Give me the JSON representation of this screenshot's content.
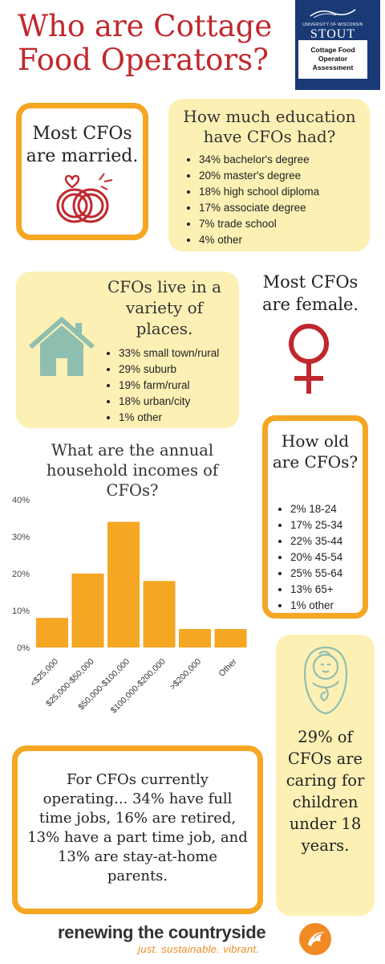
{
  "title": "Who are Cottage Food Operators?",
  "logo": {
    "university": "UNIVERSITY OF WISCONSIN",
    "name": "STOUT",
    "subtitle": "Cottage Food Operator Assessment"
  },
  "married": {
    "text": "Most CFOs are married."
  },
  "education": {
    "title": "How much education have CFOs had?",
    "items": [
      "34% bachelor's degree",
      "20% master's degree",
      "18% high school diploma",
      "17% associate degree",
      "7% trade school",
      "4% other"
    ]
  },
  "places": {
    "title": "CFOs live in a variety of places.",
    "items": [
      "33% small town/rural",
      "29% suburb",
      "19% farm/rural",
      "18% urban/city",
      "1% other"
    ]
  },
  "female": {
    "text": "Most CFOs are female."
  },
  "income": {
    "title": "What are the annual household incomes of CFOs?"
  },
  "age": {
    "title": "How old are CFOs?",
    "items": [
      "2% 18-24",
      "17% 25-34",
      "22% 35-44",
      "20% 45-54",
      "25% 55-64",
      "13% 65+",
      "1% other"
    ]
  },
  "children": {
    "text": "29% of CFOs are caring for children under 18 years."
  },
  "jobs": {
    "text": "For CFOs currently operating... 34% have full time jobs, 16% are retired, 13% have a part time job, and 13% are stay-at-home parents."
  },
  "footer": {
    "brand": "renewing the countryside",
    "tagline": "just. sustainable. vibrant."
  },
  "colors": {
    "accent": "#f5a623",
    "red": "#c0282d",
    "cream": "#fdf0b4",
    "teal": "#8fbfb0",
    "navy": "#1a3a75"
  },
  "chart_data": {
    "type": "bar",
    "categories": [
      "<$25,000",
      "$25,000-$50,000",
      "$50,000-$100,000",
      "$100,000-$200,000",
      ">$200,000",
      "Other"
    ],
    "values": [
      8,
      20,
      34,
      18,
      5,
      5
    ],
    "yticks": [
      "0%",
      "10%",
      "20%",
      "30%",
      "40%"
    ],
    "ylim": [
      0,
      40
    ],
    "grid": false,
    "color": "#f5a623"
  }
}
